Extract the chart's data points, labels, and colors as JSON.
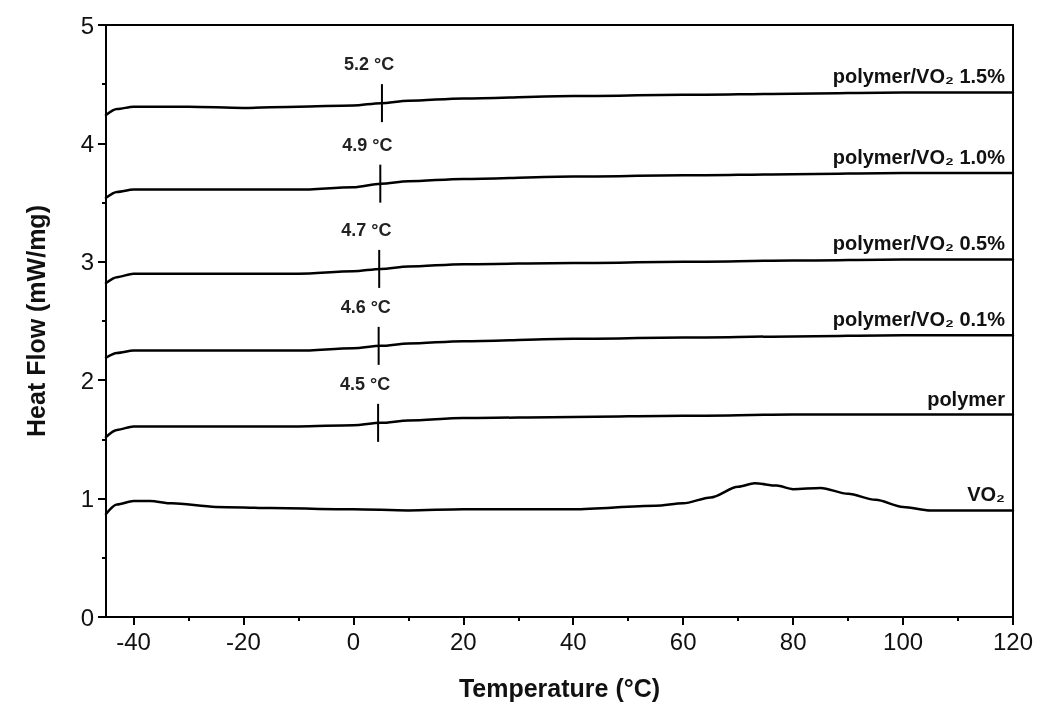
{
  "chart_data": {
    "type": "line",
    "xlabel": "Temperature (°C)",
    "ylabel": "Heat Flow (mW/mg)",
    "xlim": [
      -45,
      120
    ],
    "ylim": [
      0,
      5
    ],
    "xticks": [
      -40,
      {
        "value": -30,
        "label": null
      },
      -20,
      {
        "value": -10,
        "label": null
      },
      0,
      {
        "value": 10,
        "label": null
      },
      20,
      {
        "value": 30,
        "label": null
      },
      40,
      {
        "value": 50,
        "label": null
      },
      60,
      {
        "value": 70,
        "label": null
      },
      80,
      {
        "value": 90,
        "label": null
      },
      100,
      {
        "value": 110,
        "label": null
      },
      120
    ],
    "yticks": [
      0,
      {
        "value": 0.5,
        "label": null
      },
      1,
      {
        "value": 1.5,
        "label": null
      },
      2,
      {
        "value": 2.5,
        "label": null
      },
      3,
      {
        "value": 3.5,
        "label": null
      },
      4,
      {
        "value": 4.5,
        "label": null
      },
      5
    ],
    "grid": false,
    "x": [
      -45,
      -43,
      -40,
      -35,
      -30,
      -20,
      -10,
      0,
      5,
      10,
      20,
      40,
      60,
      80,
      100,
      120
    ],
    "series": [
      {
        "name": "polymer/VO₂ 1.5%",
        "color": "#000000",
        "values": [
          4.24,
          4.29,
          4.31,
          4.31,
          4.31,
          4.3,
          4.31,
          4.32,
          4.34,
          4.36,
          4.38,
          4.4,
          4.41,
          4.42,
          4.43,
          4.43
        ]
      },
      {
        "name": "polymer/VO₂ 1.0%",
        "color": "#000000",
        "values": [
          3.54,
          3.59,
          3.61,
          3.61,
          3.61,
          3.61,
          3.61,
          3.63,
          3.66,
          3.68,
          3.7,
          3.72,
          3.73,
          3.74,
          3.75,
          3.75
        ]
      },
      {
        "name": "polymer/VO₂ 0.5%",
        "color": "#000000",
        "values": [
          2.82,
          2.87,
          2.9,
          2.9,
          2.9,
          2.9,
          2.9,
          2.92,
          2.94,
          2.96,
          2.98,
          2.99,
          3.0,
          3.01,
          3.02,
          3.02
        ]
      },
      {
        "name": "polymer/VO₂ 0.1%",
        "color": "#000000",
        "values": [
          2.19,
          2.23,
          2.25,
          2.25,
          2.25,
          2.25,
          2.25,
          2.27,
          2.29,
          2.31,
          2.33,
          2.35,
          2.36,
          2.37,
          2.38,
          2.38
        ]
      },
      {
        "name": "polymer",
        "color": "#000000",
        "values": [
          1.52,
          1.58,
          1.61,
          1.61,
          1.61,
          1.61,
          1.61,
          1.62,
          1.64,
          1.66,
          1.68,
          1.69,
          1.7,
          1.71,
          1.71,
          1.71
        ]
      },
      {
        "name": "VO₂",
        "color": "#000000",
        "x": [
          -45,
          -43,
          -40,
          -37,
          -33,
          -25,
          -15,
          0,
          10,
          20,
          40,
          55,
          60,
          65,
          70,
          73,
          77,
          80,
          85,
          90,
          95,
          100,
          105,
          110,
          120
        ],
        "values": [
          0.87,
          0.95,
          0.98,
          0.98,
          0.96,
          0.93,
          0.92,
          0.91,
          0.9,
          0.91,
          0.91,
          0.94,
          0.96,
          1.01,
          1.1,
          1.13,
          1.11,
          1.08,
          1.09,
          1.04,
          0.99,
          0.93,
          0.9,
          0.9,
          0.9
        ]
      }
    ],
    "annotations": [
      {
        "text": "5.2 °C",
        "x": 5.2,
        "y": 4.34
      },
      {
        "text": "4.9 °C",
        "x": 4.9,
        "y": 3.66
      },
      {
        "text": "4.7 °C",
        "x": 4.7,
        "y": 2.94
      },
      {
        "text": "4.6 °C",
        "x": 4.6,
        "y": 2.29
      },
      {
        "text": "4.5 °C",
        "x": 4.5,
        "y": 1.64
      }
    ]
  }
}
